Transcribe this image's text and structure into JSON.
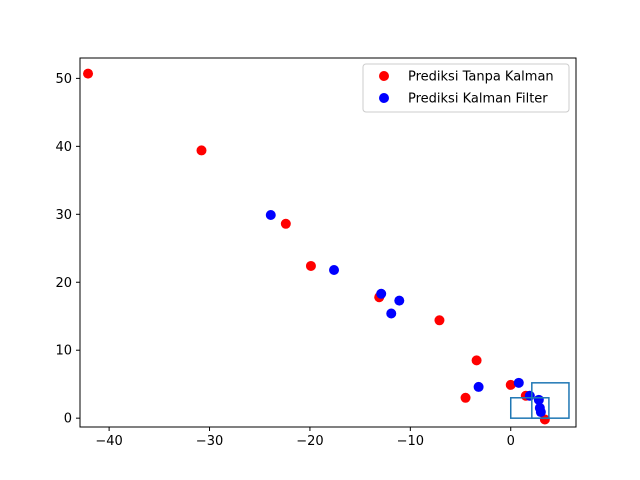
{
  "chart_data": {
    "type": "scatter",
    "title": "",
    "xlabel": "",
    "ylabel": "",
    "xlim": [
      -42.9,
      6.5
    ],
    "ylim": [
      -1.3,
      53.0
    ],
    "xticks": [
      -40,
      -30,
      -20,
      -10,
      0
    ],
    "yticks": [
      0,
      10,
      20,
      30,
      40,
      50
    ],
    "grid": false,
    "legend_position": "top-right",
    "series": [
      {
        "name": "Prediksi Tanpa Kalman",
        "color": "#ff0000",
        "points": [
          {
            "x": -42.1,
            "y": 50.7
          },
          {
            "x": -30.8,
            "y": 39.4
          },
          {
            "x": -22.4,
            "y": 28.6
          },
          {
            "x": -19.9,
            "y": 22.4
          },
          {
            "x": -13.1,
            "y": 17.8
          },
          {
            "x": -7.1,
            "y": 14.4
          },
          {
            "x": -3.4,
            "y": 8.5
          },
          {
            "x": 0.0,
            "y": 4.9
          },
          {
            "x": -4.5,
            "y": 3.0
          },
          {
            "x": 1.5,
            "y": 3.3
          },
          {
            "x": 3.4,
            "y": -0.2
          }
        ]
      },
      {
        "name": "Prediksi Kalman Filter",
        "color": "#0000ff",
        "points": [
          {
            "x": -23.9,
            "y": 29.9
          },
          {
            "x": -17.6,
            "y": 21.8
          },
          {
            "x": -12.9,
            "y": 18.3
          },
          {
            "x": -11.1,
            "y": 17.3
          },
          {
            "x": -11.9,
            "y": 15.4
          },
          {
            "x": -3.2,
            "y": 4.6
          },
          {
            "x": 0.8,
            "y": 5.2
          },
          {
            "x": 1.9,
            "y": 3.3
          },
          {
            "x": 2.8,
            "y": 2.7
          },
          {
            "x": 2.9,
            "y": 1.5
          },
          {
            "x": 3.0,
            "y": 0.9
          }
        ]
      }
    ],
    "rectangles": [
      {
        "x0": 0.0,
        "y0": 0.0,
        "x1": 3.8,
        "y1": 3.0,
        "color": "#1f77b4"
      },
      {
        "x0": 2.1,
        "y0": 0.0,
        "x1": 5.8,
        "y1": 5.2,
        "color": "#1f77b4"
      }
    ]
  }
}
